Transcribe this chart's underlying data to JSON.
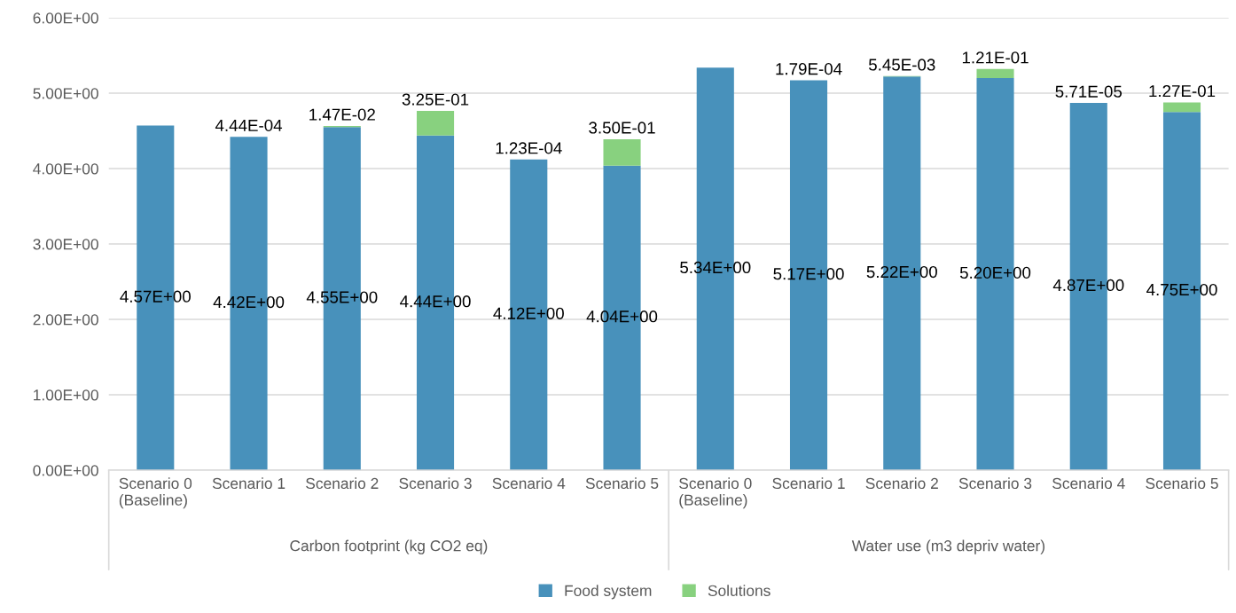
{
  "chart_data": {
    "type": "bar",
    "stacked": true,
    "categories": [
      "Scenario 0\n(Baseline)",
      "Scenario 1",
      "Scenario 2",
      "Scenario 3",
      "Scenario 4",
      "Scenario 5",
      "Scenario 0\n(Baseline)",
      "Scenario 1",
      "Scenario 2",
      "Scenario 3",
      "Scenario 4",
      "Scenario 5"
    ],
    "series": [
      {
        "name": "Food system",
        "color": "#4891bb",
        "values": [
          4.57,
          4.42,
          4.55,
          4.44,
          4.12,
          4.04,
          5.34,
          5.17,
          5.22,
          5.2,
          4.87,
          4.75
        ],
        "value_labels": [
          "4.57E+00",
          "4.42E+00",
          "4.55E+00",
          "4.44E+00",
          "4.12E+00",
          "4.04E+00",
          "5.34E+00",
          "5.17E+00",
          "5.22E+00",
          "5.20E+00",
          "4.87E+00",
          "4.75E+00"
        ]
      },
      {
        "name": "Solutions",
        "color": "#88d17f",
        "values": [
          null,
          0.000444,
          0.0147,
          0.325,
          0.000123,
          0.35,
          null,
          0.000179,
          0.00545,
          0.121,
          5.71e-05,
          0.127
        ],
        "value_labels": [
          null,
          "4.44E-04",
          "1.47E-02",
          "3.25E-01",
          "1.23E-04",
          "3.50E-01",
          null,
          "1.79E-04",
          "5.45E-03",
          "1.21E-01",
          "5.71E-05",
          "1.27E-01"
        ]
      }
    ],
    "annotations": [
      "Carbon footprint (kg CO2 eq)",
      "Water use (m3 depriv water)"
    ],
    "ylim": [
      0,
      6
    ],
    "yticks": [
      {
        "value": 0,
        "label": "0.00E+00"
      },
      {
        "value": 1,
        "label": "1.00E+00"
      },
      {
        "value": 2,
        "label": "2.00E+00"
      },
      {
        "value": 3,
        "label": "3.00E+00"
      },
      {
        "value": 4,
        "label": "4.00E+00"
      },
      {
        "value": 5,
        "label": "5.00E+00"
      },
      {
        "value": 6,
        "label": "6.00E+00"
      }
    ],
    "grid": "y",
    "legend": "bottom"
  }
}
